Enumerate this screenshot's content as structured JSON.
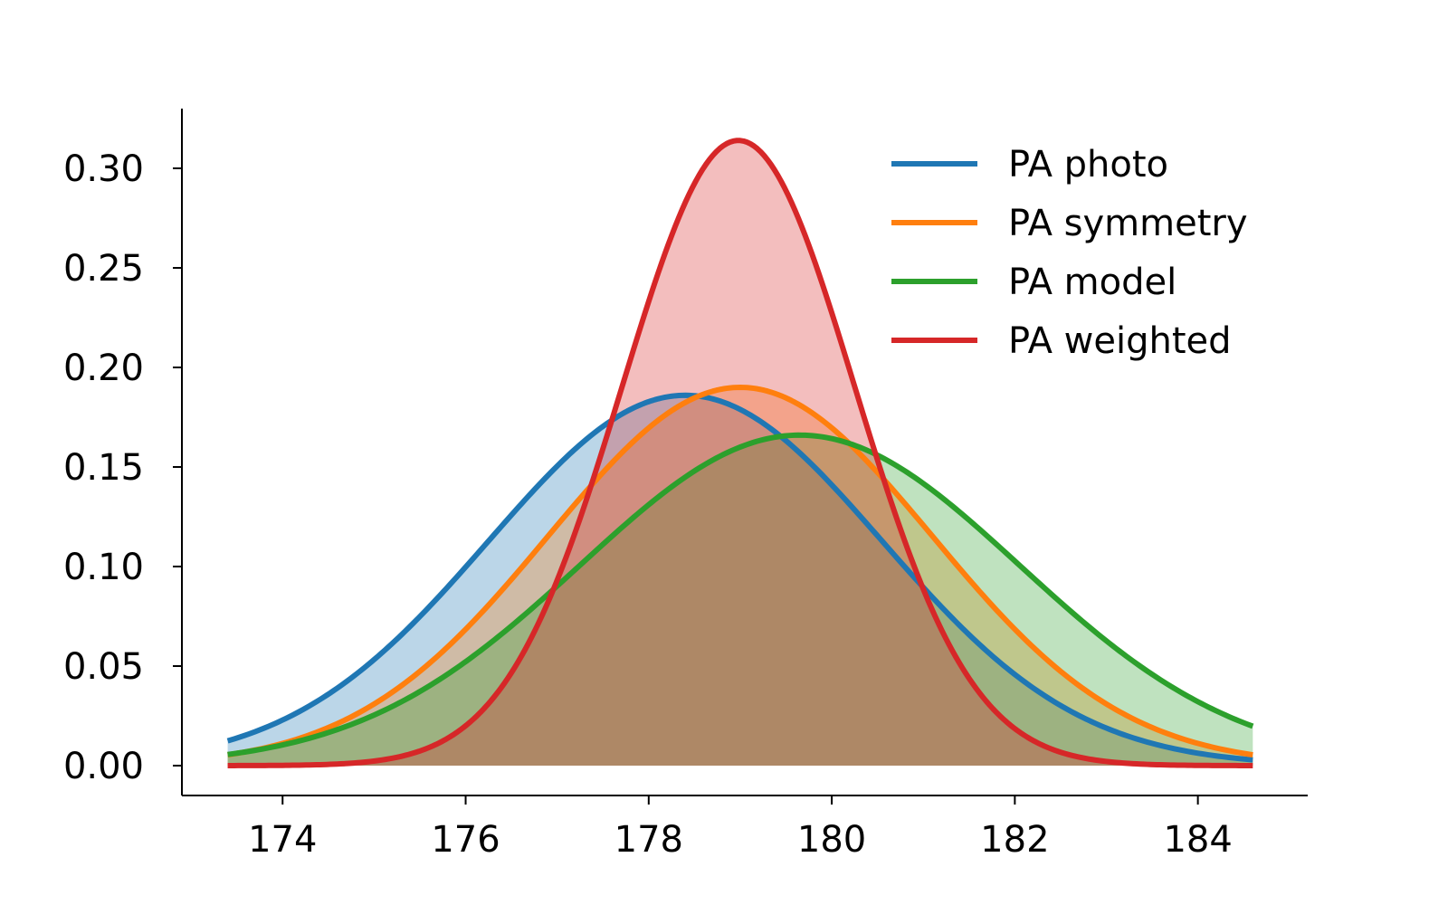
{
  "chart_data": {
    "type": "line",
    "x_range": [
      173.4,
      184.6
    ],
    "xlim": [
      172.9,
      185.2
    ],
    "ylim": [
      -0.015,
      0.33
    ],
    "x_ticks": [
      174,
      176,
      178,
      180,
      182,
      184
    ],
    "y_ticks": [
      0.0,
      0.05,
      0.1,
      0.15,
      0.2,
      0.25,
      0.3
    ],
    "x_tick_labels": [
      "174",
      "176",
      "178",
      "180",
      "182",
      "184"
    ],
    "y_tick_labels": [
      "0.00",
      "0.05",
      "0.10",
      "0.15",
      "0.20",
      "0.25",
      "0.30"
    ],
    "grid": false,
    "legend_position": "top-right",
    "fill_opacity": 0.3,
    "series": [
      {
        "name": "PA photo",
        "color": "#1f77b4",
        "distribution": "normal",
        "mean": 178.4,
        "std": 2.15,
        "peak": 0.186
      },
      {
        "name": "PA symmetry",
        "color": "#ff7f0e",
        "distribution": "normal",
        "mean": 179.0,
        "std": 2.1,
        "peak": 0.19
      },
      {
        "name": "PA model",
        "color": "#2ca02c",
        "distribution": "normal",
        "mean": 179.65,
        "std": 2.4,
        "peak": 0.166
      },
      {
        "name": "PA weighted",
        "color": "#d62728",
        "distribution": "normal",
        "mean": 178.98,
        "std": 1.27,
        "peak": 0.314
      }
    ]
  }
}
